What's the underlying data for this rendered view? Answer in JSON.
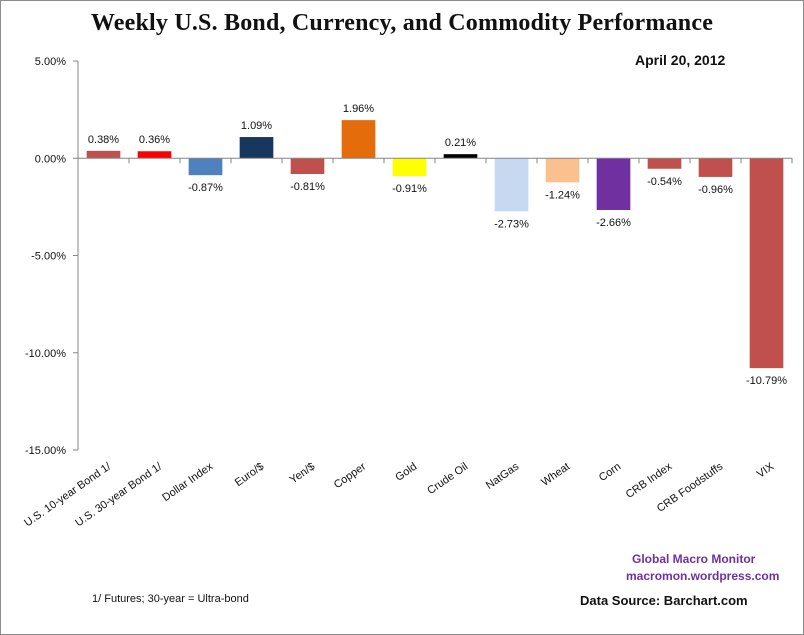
{
  "chart_data": {
    "type": "bar",
    "title": "Weekly U.S. Bond, Currency, and Commodity Performance",
    "subtitle": "April 20, 2012",
    "xlabel": "",
    "ylabel": "",
    "ylim": [
      -15,
      5
    ],
    "yticks": [
      5,
      0,
      -5,
      -10,
      -15
    ],
    "ytick_labels": [
      "5.00%",
      "0.00%",
      "-5.00%",
      "-10.00%",
      "-15.00%"
    ],
    "grid": false,
    "legend": "none",
    "categories": [
      "U.S. 10-year Bond 1/",
      "U.S. 30-year Bond 1/",
      "Dollar Index",
      "Euro/$",
      "Yen/$",
      "Copper",
      "Gold",
      "Crude Oil",
      "NatGas",
      "Wheat",
      "Corn",
      "CRB Index",
      "CRB Foodstuffs",
      "VIX"
    ],
    "values": [
      0.38,
      0.36,
      -0.87,
      1.09,
      -0.81,
      1.96,
      -0.91,
      0.21,
      -2.73,
      -1.24,
      -2.66,
      -0.54,
      -0.96,
      -10.79
    ],
    "value_labels": [
      "0.38%",
      "0.36%",
      "-0.87%",
      "1.09%",
      "-0.81%",
      "1.96%",
      "-0.91%",
      "0.21%",
      "-2.73%",
      "-1.24%",
      "-2.66%",
      "-0.54%",
      "-0.96%",
      "-10.79%"
    ],
    "colors": [
      "#c0504d",
      "#ff0000",
      "#4f81bd",
      "#17375e",
      "#c0504d",
      "#e46c0a",
      "#ffff00",
      "#000000",
      "#c6d9f1",
      "#fac090",
      "#7030a0",
      "#c0504d",
      "#c0504d",
      "#c0504d"
    ]
  },
  "annotations": {
    "date": "April 20, 2012",
    "credit_line1": "Global Macro Monitor",
    "credit_line2": "macromon.wordpress.com",
    "source": "Data Source:  Barchart.com",
    "footnote": "1/  Futures; 30-year = Ultra-bond"
  },
  "colors": {
    "credit": "#7030a0",
    "axis": "#868686",
    "text": "#111111"
  }
}
